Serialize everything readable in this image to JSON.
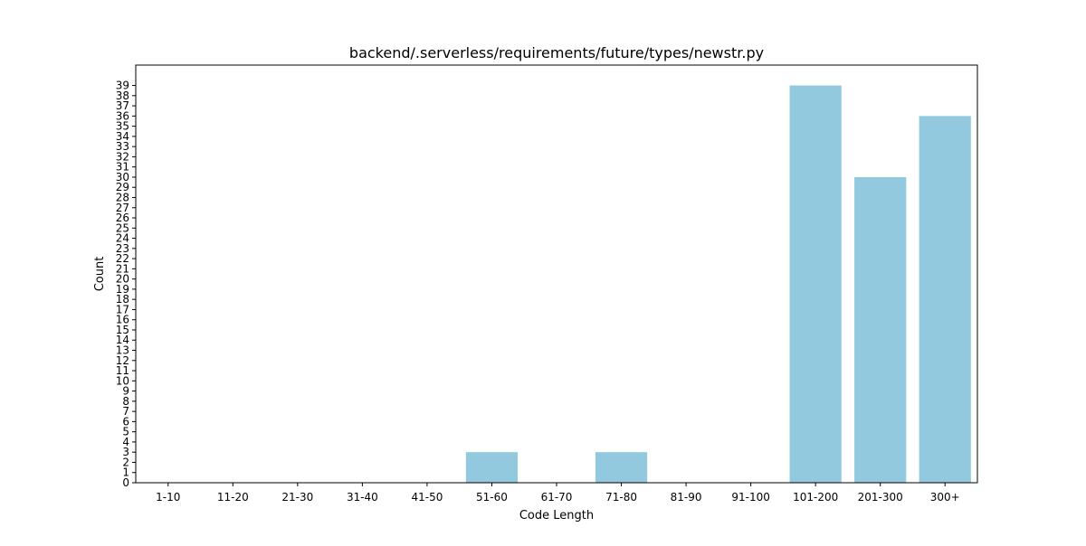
{
  "chart_data": {
    "type": "bar",
    "title": "backend/.serverless/requirements/future/types/newstr.py",
    "xlabel": "Code Length",
    "ylabel": "Count",
    "categories": [
      "1-10",
      "11-20",
      "21-30",
      "31-40",
      "41-50",
      "51-60",
      "61-70",
      "71-80",
      "81-90",
      "91-100",
      "101-200",
      "201-300",
      "300+"
    ],
    "values": [
      0,
      0,
      0,
      0,
      0,
      3,
      0,
      3,
      0,
      0,
      39,
      30,
      36
    ],
    "ylim": [
      0,
      41
    ],
    "yticks": [
      0,
      1,
      2,
      3,
      4,
      5,
      6,
      7,
      8,
      9,
      10,
      11,
      12,
      13,
      14,
      15,
      16,
      17,
      18,
      19,
      20,
      21,
      22,
      23,
      24,
      25,
      26,
      27,
      28,
      29,
      30,
      31,
      32,
      33,
      34,
      35,
      36,
      37,
      38,
      39
    ],
    "bar_color": "#92c9de",
    "grid": false,
    "legend": false
  }
}
